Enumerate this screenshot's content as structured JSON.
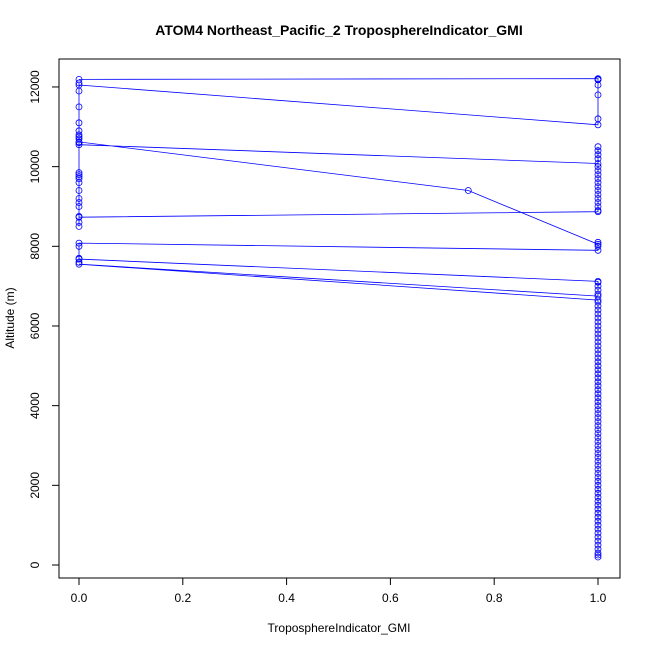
{
  "chart_data": {
    "type": "line",
    "title": "ATOM4 Northeast_Pacific_2 TroposphereIndicator_GMI",
    "xlabel": "TroposphereIndicator_GMI",
    "ylabel": "Altitude (m)",
    "xlim": [
      0,
      1
    ],
    "ylim": [
      0,
      12200
    ],
    "x_ticks": [
      0.0,
      0.2,
      0.4,
      0.6,
      0.8,
      1.0
    ],
    "x_tick_labels": [
      "0.0",
      "0.2",
      "0.4",
      "0.6",
      "0.8",
      "1.0"
    ],
    "y_ticks": [
      0,
      2000,
      4000,
      6000,
      8000,
      10000,
      12000
    ],
    "y_tick_labels": [
      "0",
      "2000",
      "4000",
      "6000",
      "8000",
      "10000",
      "12000"
    ],
    "grid": false,
    "series_color": "#0000ff",
    "series": [
      {
        "points": [
          [
            0,
            12190
          ],
          [
            1,
            12210
          ],
          [
            1,
            12180
          ],
          [
            1,
            12200
          ],
          [
            1,
            12190
          ],
          [
            1,
            12050
          ],
          [
            1,
            11800
          ],
          [
            1,
            11200
          ],
          [
            1,
            11050
          ],
          [
            0,
            12050
          ],
          [
            0,
            12100
          ],
          [
            0,
            11900
          ],
          [
            0,
            11500
          ],
          [
            0,
            11100
          ],
          [
            0,
            10900
          ],
          [
            0,
            10800
          ],
          [
            0,
            10750
          ],
          [
            0,
            10700
          ],
          [
            0,
            10600
          ],
          [
            0,
            10550
          ],
          [
            1,
            10080
          ],
          [
            1,
            10200
          ],
          [
            1,
            10400
          ],
          [
            1,
            10500
          ],
          [
            1,
            10300
          ],
          [
            1,
            10000
          ],
          [
            1,
            9900
          ],
          [
            1,
            9800
          ],
          [
            1,
            9700
          ],
          [
            1,
            9600
          ],
          [
            1,
            9500
          ],
          [
            1,
            9400
          ],
          [
            1,
            9300
          ],
          [
            1,
            9200
          ],
          [
            1,
            9100
          ],
          [
            1,
            9000
          ],
          [
            1,
            8900
          ],
          [
            1,
            8870
          ],
          [
            0,
            8730
          ],
          [
            0,
            8750
          ],
          [
            0,
            8600
          ],
          [
            0,
            8500
          ],
          [
            0,
            9000
          ],
          [
            0,
            9100
          ],
          [
            0,
            9200
          ],
          [
            0,
            9400
          ],
          [
            0,
            9600
          ],
          [
            0,
            9700
          ],
          [
            0,
            9800
          ],
          [
            0,
            9850
          ],
          [
            0,
            9750
          ],
          [
            0,
            10620
          ],
          [
            0.75,
            9400
          ],
          [
            1,
            8050
          ],
          [
            1,
            8100
          ],
          [
            1,
            8000
          ],
          [
            1,
            7900
          ],
          [
            0,
            8080
          ],
          [
            0,
            8000
          ],
          [
            0,
            7700
          ],
          [
            0,
            7600
          ],
          [
            0,
            7680
          ],
          [
            1,
            7120
          ],
          [
            1,
            7100
          ],
          [
            1,
            7000
          ],
          [
            1,
            6900
          ],
          [
            1,
            6800
          ],
          [
            1,
            6750
          ],
          [
            0,
            7550
          ],
          [
            1,
            6650
          ],
          [
            1,
            6600
          ],
          [
            1,
            6500
          ],
          [
            1,
            6400
          ],
          [
            1,
            6300
          ],
          [
            1,
            6200
          ],
          [
            1,
            6100
          ],
          [
            1,
            6000
          ],
          [
            1,
            5900
          ],
          [
            1,
            5800
          ],
          [
            1,
            5700
          ],
          [
            1,
            5600
          ],
          [
            1,
            5500
          ],
          [
            1,
            5400
          ],
          [
            1,
            5300
          ],
          [
            1,
            5200
          ],
          [
            1,
            5100
          ],
          [
            1,
            5000
          ],
          [
            1,
            4900
          ],
          [
            1,
            4800
          ],
          [
            1,
            4700
          ],
          [
            1,
            4600
          ],
          [
            1,
            4500
          ],
          [
            1,
            4400
          ],
          [
            1,
            4300
          ],
          [
            1,
            4200
          ],
          [
            1,
            4100
          ],
          [
            1,
            4000
          ],
          [
            1,
            3900
          ],
          [
            1,
            3800
          ],
          [
            1,
            3700
          ],
          [
            1,
            3600
          ],
          [
            1,
            3500
          ],
          [
            1,
            3400
          ],
          [
            1,
            3300
          ],
          [
            1,
            3200
          ],
          [
            1,
            3100
          ],
          [
            1,
            3000
          ],
          [
            1,
            2900
          ],
          [
            1,
            2800
          ],
          [
            1,
            2700
          ],
          [
            1,
            2600
          ],
          [
            1,
            2500
          ],
          [
            1,
            2400
          ],
          [
            1,
            2300
          ],
          [
            1,
            2200
          ],
          [
            1,
            2100
          ],
          [
            1,
            2000
          ],
          [
            1,
            1900
          ],
          [
            1,
            1800
          ],
          [
            1,
            1700
          ],
          [
            1,
            1600
          ],
          [
            1,
            1500
          ],
          [
            1,
            1400
          ],
          [
            1,
            1300
          ],
          [
            1,
            1200
          ],
          [
            1,
            1100
          ],
          [
            1,
            1000
          ],
          [
            1,
            900
          ],
          [
            1,
            800
          ],
          [
            1,
            700
          ],
          [
            1,
            600
          ],
          [
            1,
            500
          ],
          [
            1,
            400
          ],
          [
            1,
            300
          ],
          [
            1,
            250
          ],
          [
            1,
            200
          ]
        ]
      }
    ]
  }
}
